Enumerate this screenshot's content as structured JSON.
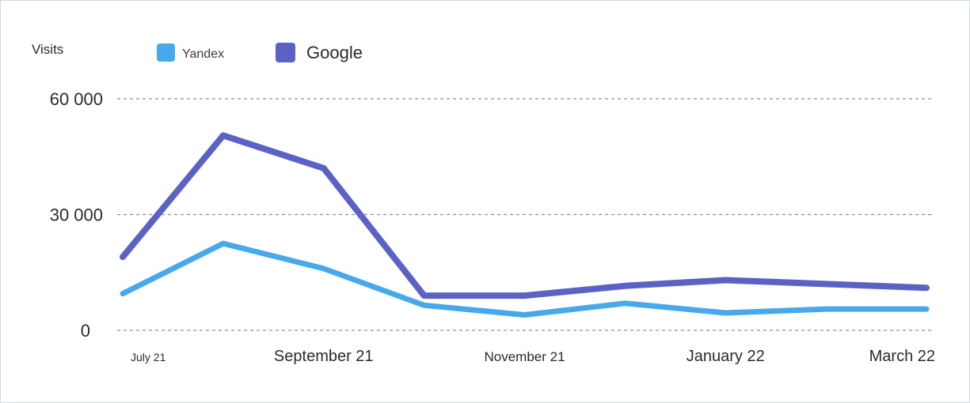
{
  "chart_data": {
    "type": "line",
    "ylabel": "Visits",
    "ylim": [
      0,
      60000
    ],
    "y_ticks": [
      {
        "value": 0,
        "label": "0"
      },
      {
        "value": 30000,
        "label": "30 000"
      },
      {
        "value": 60000,
        "label": "60 000"
      }
    ],
    "x_tick_labels": [
      "July 21",
      "September 21",
      "November 21",
      "January 22",
      "March 22"
    ],
    "x_tick_positions": [
      0,
      2,
      4,
      6,
      8
    ],
    "categories": [
      "2021-07",
      "2021-08",
      "2021-09",
      "2021-10",
      "2021-11",
      "2021-12",
      "2022-01",
      "2022-02",
      "2022-03"
    ],
    "series": [
      {
        "name": "Yandex",
        "color": "#47a9ec",
        "values": [
          9500,
          22500,
          16000,
          6500,
          4000,
          7000,
          4500,
          5500,
          5500
        ]
      },
      {
        "name": "Google",
        "color": "#5b62c4",
        "values": [
          19000,
          50500,
          42000,
          9000,
          9000,
          11500,
          13000,
          12000,
          11000
        ]
      }
    ],
    "grid": true,
    "legend_position": "top-left"
  }
}
